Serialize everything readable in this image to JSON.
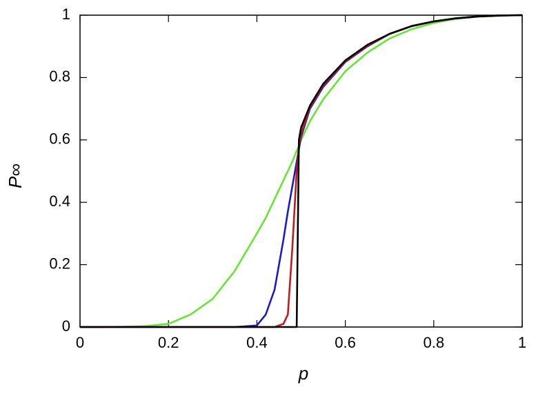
{
  "chart_data": {
    "type": "line",
    "xlabel": "p",
    "ylabel": "P∞",
    "x": [
      0,
      0.05,
      0.1,
      0.15,
      0.2,
      0.25,
      0.3,
      0.35,
      0.4,
      0.42,
      0.44,
      0.46,
      0.47,
      0.48,
      0.49,
      0.495,
      0.5,
      0.52,
      0.55,
      0.6,
      0.65,
      0.7,
      0.75,
      0.8,
      0.85,
      0.9,
      0.95,
      1
    ],
    "series": [
      {
        "color": "#66e633",
        "values": [
          0,
          0,
          0.001,
          0.003,
          0.01,
          0.04,
          0.09,
          0.18,
          0.3,
          0.35,
          0.41,
          0.47,
          0.5,
          0.53,
          0.565,
          0.58,
          0.6,
          0.66,
          0.73,
          0.82,
          0.88,
          0.925,
          0.955,
          0.975,
          0.988,
          0.995,
          0.998,
          1
        ]
      },
      {
        "color": "#1a1acc",
        "values": [
          0,
          0,
          0,
          0,
          0,
          0,
          0,
          0,
          0.005,
          0.04,
          0.12,
          0.28,
          0.37,
          0.45,
          0.53,
          0.57,
          0.61,
          0.7,
          0.77,
          0.85,
          0.9,
          0.94,
          0.965,
          0.98,
          0.99,
          0.996,
          0.999,
          1
        ]
      },
      {
        "color": "#c01a1a",
        "values": [
          0,
          0,
          0,
          0,
          0,
          0,
          0,
          0,
          0,
          0,
          0,
          0.01,
          0.04,
          0.25,
          0.5,
          0.58,
          0.62,
          0.705,
          0.775,
          0.852,
          0.902,
          0.94,
          0.965,
          0.98,
          0.99,
          0.996,
          0.999,
          1
        ]
      },
      {
        "color": "#000000",
        "values": [
          0,
          0,
          0,
          0,
          0,
          0,
          0,
          0,
          0,
          0,
          0,
          0,
          0,
          0,
          0,
          0.6,
          0.64,
          0.71,
          0.78,
          0.855,
          0.905,
          0.94,
          0.965,
          0.98,
          0.99,
          0.996,
          0.999,
          1
        ]
      }
    ],
    "xlim": [
      0,
      1
    ],
    "xticks": [
      0,
      0.2,
      0.4,
      0.6,
      0.8,
      1
    ],
    "ylim": [
      0,
      1
    ],
    "yticks": [
      0,
      0.2,
      0.4,
      0.6,
      0.8,
      1
    ]
  }
}
